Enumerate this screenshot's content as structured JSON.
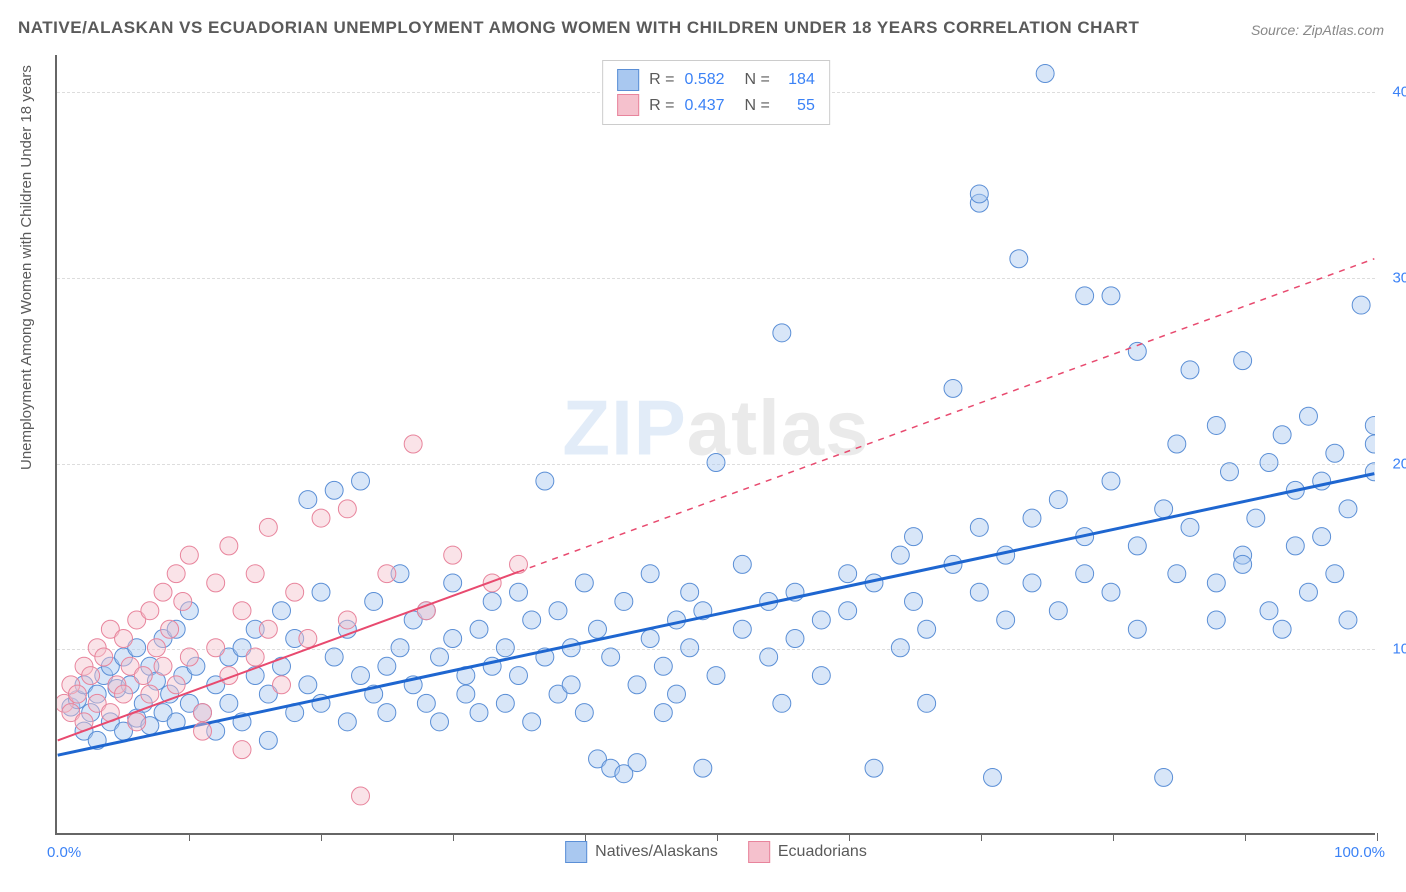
{
  "title": "NATIVE/ALASKAN VS ECUADORIAN UNEMPLOYMENT AMONG WOMEN WITH CHILDREN UNDER 18 YEARS CORRELATION CHART",
  "source": "Source: ZipAtlas.com",
  "y_axis_label": "Unemployment Among Women with Children Under 18 years",
  "watermark_zip": "ZIP",
  "watermark_atlas": "atlas",
  "chart": {
    "type": "scatter",
    "xlim": [
      0,
      100
    ],
    "ylim": [
      0,
      42
    ],
    "x_axis_start_label": "0.0%",
    "x_axis_end_label": "100.0%",
    "y_ticks": [
      {
        "value": 10,
        "label": "10.0%"
      },
      {
        "value": 20,
        "label": "20.0%"
      },
      {
        "value": 30,
        "label": "30.0%"
      },
      {
        "value": 40,
        "label": "40.0%"
      }
    ],
    "x_tick_positions": [
      10,
      20,
      30,
      40,
      50,
      60,
      70,
      80,
      90,
      100
    ],
    "background_color": "#ffffff",
    "grid_color": "#dddddd",
    "marker_radius": 9,
    "marker_opacity": 0.45,
    "series": [
      {
        "name": "Natives/Alaskans",
        "fill_color": "#a9c8f0",
        "stroke_color": "#5b8fd6",
        "r_value": "0.582",
        "n_value": "184",
        "regression": {
          "x1": 0,
          "y1": 4.2,
          "x2": 100,
          "y2": 19.4,
          "solid_end_x": 100,
          "color": "#1e66d0",
          "width": 3
        },
        "points": [
          [
            1,
            6.8
          ],
          [
            1.5,
            7.2
          ],
          [
            2,
            5.5
          ],
          [
            2,
            8
          ],
          [
            2.5,
            6.5
          ],
          [
            3,
            7.5
          ],
          [
            3,
            5
          ],
          [
            3.5,
            8.5
          ],
          [
            4,
            6
          ],
          [
            4,
            9
          ],
          [
            4.5,
            7.8
          ],
          [
            5,
            5.5
          ],
          [
            5,
            9.5
          ],
          [
            5.5,
            8
          ],
          [
            6,
            6.2
          ],
          [
            6,
            10
          ],
          [
            6.5,
            7
          ],
          [
            7,
            5.8
          ],
          [
            7,
            9
          ],
          [
            7.5,
            8.2
          ],
          [
            8,
            6.5
          ],
          [
            8,
            10.5
          ],
          [
            8.5,
            7.5
          ],
          [
            9,
            11
          ],
          [
            9,
            6
          ],
          [
            9.5,
            8.5
          ],
          [
            10,
            7
          ],
          [
            10,
            12
          ],
          [
            10.5,
            9
          ],
          [
            11,
            6.5
          ],
          [
            12,
            8
          ],
          [
            12,
            5.5
          ],
          [
            13,
            9.5
          ],
          [
            13,
            7
          ],
          [
            14,
            10
          ],
          [
            14,
            6
          ],
          [
            15,
            8.5
          ],
          [
            15,
            11
          ],
          [
            16,
            7.5
          ],
          [
            16,
            5
          ],
          [
            17,
            9
          ],
          [
            17,
            12
          ],
          [
            18,
            6.5
          ],
          [
            18,
            10.5
          ],
          [
            19,
            8
          ],
          [
            19,
            18
          ],
          [
            20,
            7
          ],
          [
            20,
            13
          ],
          [
            21,
            9.5
          ],
          [
            21,
            18.5
          ],
          [
            22,
            6
          ],
          [
            22,
            11
          ],
          [
            23,
            8.5
          ],
          [
            23,
            19
          ],
          [
            24,
            7.5
          ],
          [
            24,
            12.5
          ],
          [
            25,
            9
          ],
          [
            25,
            6.5
          ],
          [
            26,
            10
          ],
          [
            26,
            14
          ],
          [
            27,
            8
          ],
          [
            27,
            11.5
          ],
          [
            28,
            7
          ],
          [
            28,
            12
          ],
          [
            29,
            9.5
          ],
          [
            29,
            6
          ],
          [
            30,
            10.5
          ],
          [
            30,
            13.5
          ],
          [
            31,
            8.5
          ],
          [
            31,
            7.5
          ],
          [
            32,
            11
          ],
          [
            32,
            6.5
          ],
          [
            33,
            9
          ],
          [
            33,
            12.5
          ],
          [
            34,
            7
          ],
          [
            34,
            10
          ],
          [
            35,
            8.5
          ],
          [
            35,
            13
          ],
          [
            36,
            11.5
          ],
          [
            36,
            6
          ],
          [
            37,
            9.5
          ],
          [
            37,
            19
          ],
          [
            38,
            7.5
          ],
          [
            38,
            12
          ],
          [
            39,
            10
          ],
          [
            39,
            8
          ],
          [
            40,
            6.5
          ],
          [
            40,
            13.5
          ],
          [
            41,
            4
          ],
          [
            41,
            11
          ],
          [
            42,
            3.5
          ],
          [
            42,
            9.5
          ],
          [
            43,
            3.2
          ],
          [
            43,
            12.5
          ],
          [
            44,
            3.8
          ],
          [
            44,
            8
          ],
          [
            45,
            10.5
          ],
          [
            45,
            14
          ],
          [
            46,
            9
          ],
          [
            46,
            6.5
          ],
          [
            47,
            11.5
          ],
          [
            47,
            7.5
          ],
          [
            48,
            13
          ],
          [
            48,
            10
          ],
          [
            49,
            3.5
          ],
          [
            49,
            12
          ],
          [
            50,
            8.5
          ],
          [
            50,
            20
          ],
          [
            52,
            11
          ],
          [
            52,
            14.5
          ],
          [
            54,
            9.5
          ],
          [
            54,
            12.5
          ],
          [
            55,
            7
          ],
          [
            55,
            27
          ],
          [
            56,
            13
          ],
          [
            56,
            10.5
          ],
          [
            58,
            11.5
          ],
          [
            58,
            8.5
          ],
          [
            60,
            14
          ],
          [
            60,
            12
          ],
          [
            62,
            3.5
          ],
          [
            62,
            13.5
          ],
          [
            64,
            15
          ],
          [
            64,
            10
          ],
          [
            65,
            16
          ],
          [
            65,
            12.5
          ],
          [
            66,
            11
          ],
          [
            66,
            7
          ],
          [
            68,
            14.5
          ],
          [
            68,
            24
          ],
          [
            70,
            13
          ],
          [
            70,
            16.5
          ],
          [
            70,
            34
          ],
          [
            70,
            34.5
          ],
          [
            71,
            3
          ],
          [
            72,
            15
          ],
          [
            72,
            11.5
          ],
          [
            73,
            31
          ],
          [
            74,
            17
          ],
          [
            74,
            13.5
          ],
          [
            75,
            41
          ],
          [
            76,
            12
          ],
          [
            76,
            18
          ],
          [
            78,
            14
          ],
          [
            78,
            29
          ],
          [
            78,
            16
          ],
          [
            80,
            29
          ],
          [
            80,
            13
          ],
          [
            80,
            19
          ],
          [
            82,
            15.5
          ],
          [
            82,
            11
          ],
          [
            82,
            26
          ],
          [
            84,
            17.5
          ],
          [
            84,
            3
          ],
          [
            85,
            21
          ],
          [
            85,
            14
          ],
          [
            86,
            25
          ],
          [
            86,
            16.5
          ],
          [
            88,
            13.5
          ],
          [
            88,
            22
          ],
          [
            88,
            11.5
          ],
          [
            89,
            19.5
          ],
          [
            90,
            15
          ],
          [
            90,
            25.5
          ],
          [
            90,
            14.5
          ],
          [
            91,
            17
          ],
          [
            92,
            20
          ],
          [
            92,
            12
          ],
          [
            93,
            11
          ],
          [
            93,
            21.5
          ],
          [
            94,
            15.5
          ],
          [
            94,
            18.5
          ],
          [
            95,
            13
          ],
          [
            95,
            22.5
          ],
          [
            96,
            16
          ],
          [
            96,
            19
          ],
          [
            97,
            14
          ],
          [
            97,
            20.5
          ],
          [
            98,
            17.5
          ],
          [
            98,
            11.5
          ],
          [
            99,
            28.5
          ],
          [
            100,
            22
          ],
          [
            100,
            21
          ],
          [
            100,
            19.5
          ]
        ]
      },
      {
        "name": "Ecuadorians",
        "fill_color": "#f5c1cd",
        "stroke_color": "#e8849c",
        "r_value": "0.437",
        "n_value": "55",
        "regression": {
          "x1": 0,
          "y1": 5.0,
          "x2": 100,
          "y2": 31.0,
          "solid_end_x": 35,
          "color": "#e84a6f",
          "width": 2
        },
        "points": [
          [
            0.5,
            7
          ],
          [
            1,
            6.5
          ],
          [
            1,
            8
          ],
          [
            1.5,
            7.5
          ],
          [
            2,
            6
          ],
          [
            2,
            9
          ],
          [
            2.5,
            8.5
          ],
          [
            3,
            7
          ],
          [
            3,
            10
          ],
          [
            3.5,
            9.5
          ],
          [
            4,
            6.5
          ],
          [
            4,
            11
          ],
          [
            4.5,
            8
          ],
          [
            5,
            7.5
          ],
          [
            5,
            10.5
          ],
          [
            5.5,
            9
          ],
          [
            6,
            11.5
          ],
          [
            6,
            6
          ],
          [
            6.5,
            8.5
          ],
          [
            7,
            12
          ],
          [
            7,
            7.5
          ],
          [
            7.5,
            10
          ],
          [
            8,
            9
          ],
          [
            8,
            13
          ],
          [
            8.5,
            11
          ],
          [
            9,
            8
          ],
          [
            9,
            14
          ],
          [
            9.5,
            12.5
          ],
          [
            10,
            9.5
          ],
          [
            10,
            15
          ],
          [
            11,
            6.5
          ],
          [
            11,
            5.5
          ],
          [
            12,
            13.5
          ],
          [
            12,
            10
          ],
          [
            13,
            15.5
          ],
          [
            13,
            8.5
          ],
          [
            14,
            12
          ],
          [
            14,
            4.5
          ],
          [
            15,
            14
          ],
          [
            15,
            9.5
          ],
          [
            16,
            11
          ],
          [
            16,
            16.5
          ],
          [
            17,
            8
          ],
          [
            18,
            13
          ],
          [
            19,
            10.5
          ],
          [
            20,
            17
          ],
          [
            22,
            11.5
          ],
          [
            22,
            17.5
          ],
          [
            23,
            2
          ],
          [
            25,
            14
          ],
          [
            27,
            21
          ],
          [
            28,
            12
          ],
          [
            30,
            15
          ],
          [
            33,
            13.5
          ],
          [
            35,
            14.5
          ]
        ]
      }
    ]
  },
  "bottom_legend": [
    {
      "label": "Natives/Alaskans",
      "fill": "#a9c8f0",
      "stroke": "#5b8fd6"
    },
    {
      "label": "Ecuadorians",
      "fill": "#f5c1cd",
      "stroke": "#e8849c"
    }
  ]
}
